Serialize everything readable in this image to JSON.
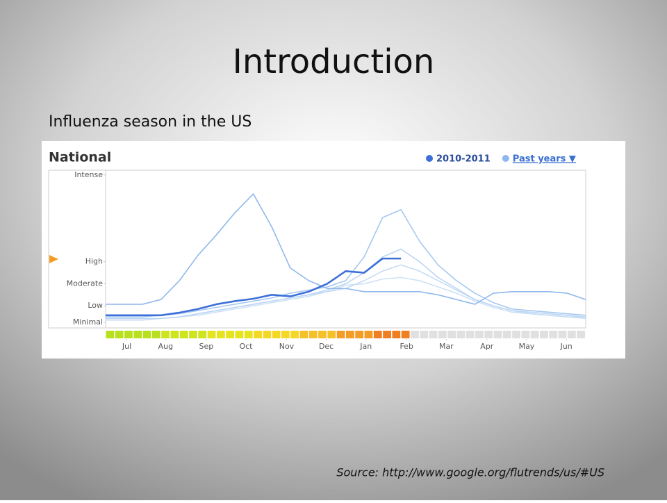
{
  "slide": {
    "title": "Introduction",
    "subtitle": "Influenza season in the US",
    "source": "Source: http://www.google.org/flutrends/us/#US"
  },
  "chart_data": {
    "type": "line",
    "title": "National",
    "x": [
      0,
      2,
      4,
      6,
      8,
      10,
      12,
      14,
      16,
      18,
      20,
      22,
      24,
      26,
      28,
      30,
      32,
      34,
      36,
      38,
      40,
      42,
      44,
      46,
      48,
      50,
      52
    ],
    "xlim": [
      0,
      52
    ],
    "xticks": [
      {
        "value": 2.3,
        "label": "Jul"
      },
      {
        "value": 6.5,
        "label": "Aug"
      },
      {
        "value": 10.9,
        "label": "Sep"
      },
      {
        "value": 15.2,
        "label": "Oct"
      },
      {
        "value": 19.6,
        "label": "Nov"
      },
      {
        "value": 23.9,
        "label": "Dec"
      },
      {
        "value": 28.2,
        "label": "Jan"
      },
      {
        "value": 32.6,
        "label": "Feb"
      },
      {
        "value": 36.9,
        "label": "Mar"
      },
      {
        "value": 41.3,
        "label": "Apr"
      },
      {
        "value": 45.6,
        "label": "May"
      },
      {
        "value": 49.9,
        "label": "Jun"
      }
    ],
    "ylim": [
      0,
      100
    ],
    "yticks": [
      {
        "value": 3.5,
        "label": "Minimal"
      },
      {
        "value": 14,
        "label": "Low"
      },
      {
        "value": 28,
        "label": "Moderate"
      },
      {
        "value": 42,
        "label": "High"
      },
      {
        "value": 97,
        "label": "Intense"
      }
    ],
    "grid": false,
    "series": [
      {
        "name": "2010-2011",
        "color": "#3d6fd8",
        "values": [
          8,
          8,
          8,
          8,
          9.7,
          12,
          15,
          17,
          18.5,
          21,
          20,
          23,
          28,
          36,
          35,
          44,
          44,
          null,
          null,
          null,
          null,
          null,
          null,
          null,
          null,
          null,
          null
        ]
      },
      {
        "name": "Past years ▼",
        "color": "#8fb8ec",
        "values": [
          15,
          15,
          15,
          18,
          30,
          46,
          59,
          73,
          85,
          64,
          38,
          30,
          25,
          25,
          23,
          23,
          23,
          23,
          21,
          18,
          15,
          22,
          23,
          23,
          23,
          22,
          18
        ]
      },
      {
        "color": "#a6c8f0",
        "values": [
          7,
          7,
          7,
          8,
          9,
          11,
          13,
          15,
          17,
          19,
          22,
          24,
          26,
          30,
          45,
          70,
          75,
          55,
          40,
          30,
          22,
          16,
          12,
          11,
          10,
          9,
          8
        ]
      },
      {
        "color": "#bcd6f4",
        "values": [
          6,
          6,
          6,
          6,
          7,
          9,
          11,
          13,
          15,
          17,
          19,
          21,
          24,
          28,
          35,
          45,
          50,
          42,
          32,
          25,
          18,
          14,
          11,
          10,
          9,
          8,
          7
        ]
      },
      {
        "color": "#c6dcf5",
        "values": [
          5,
          5,
          5,
          6,
          7,
          9,
          11,
          13,
          15,
          17,
          19,
          21,
          23,
          25,
          30,
          36,
          40,
          36,
          30,
          24,
          18,
          14,
          11,
          9,
          8,
          7,
          6
        ]
      },
      {
        "color": "#cfe1f6",
        "values": [
          6,
          6,
          6,
          6,
          7,
          8,
          10,
          12,
          14,
          16,
          18,
          20,
          23,
          27,
          28,
          31,
          32,
          30,
          26,
          22,
          17,
          13,
          10,
          9,
          8,
          7,
          7
        ]
      }
    ],
    "activity_colors": [
      "#b8e01e",
      "#b8e01e",
      "#b8e01e",
      "#b8e01e",
      "#b8e01e",
      "#b8e01e",
      "#cde41f",
      "#cde41f",
      "#cde41f",
      "#cde41f",
      "#cde41f",
      "#e6e41f",
      "#e6e41f",
      "#e6e41f",
      "#e6e41f",
      "#e6e41f",
      "#f5d826",
      "#f5d826",
      "#f5d826",
      "#f5d826",
      "#f5d826",
      "#f5c02a",
      "#f5c02a",
      "#f5c02a",
      "#f5c02a",
      "#f39c26",
      "#f39c26",
      "#f39c26",
      "#f39c26",
      "#f07f22",
      "#f07f22",
      "#f07f22",
      "#f07f22",
      "#e0e0e0",
      "#e0e0e0",
      "#e0e0e0",
      "#e0e0e0",
      "#e0e0e0",
      "#e0e0e0",
      "#e0e0e0",
      "#e0e0e0",
      "#e0e0e0",
      "#e0e0e0",
      "#e0e0e0",
      "#e0e0e0",
      "#e0e0e0",
      "#e0e0e0",
      "#e0e0e0",
      "#e0e0e0",
      "#e0e0e0",
      "#e0e0e0",
      "#e0e0e0"
    ]
  }
}
